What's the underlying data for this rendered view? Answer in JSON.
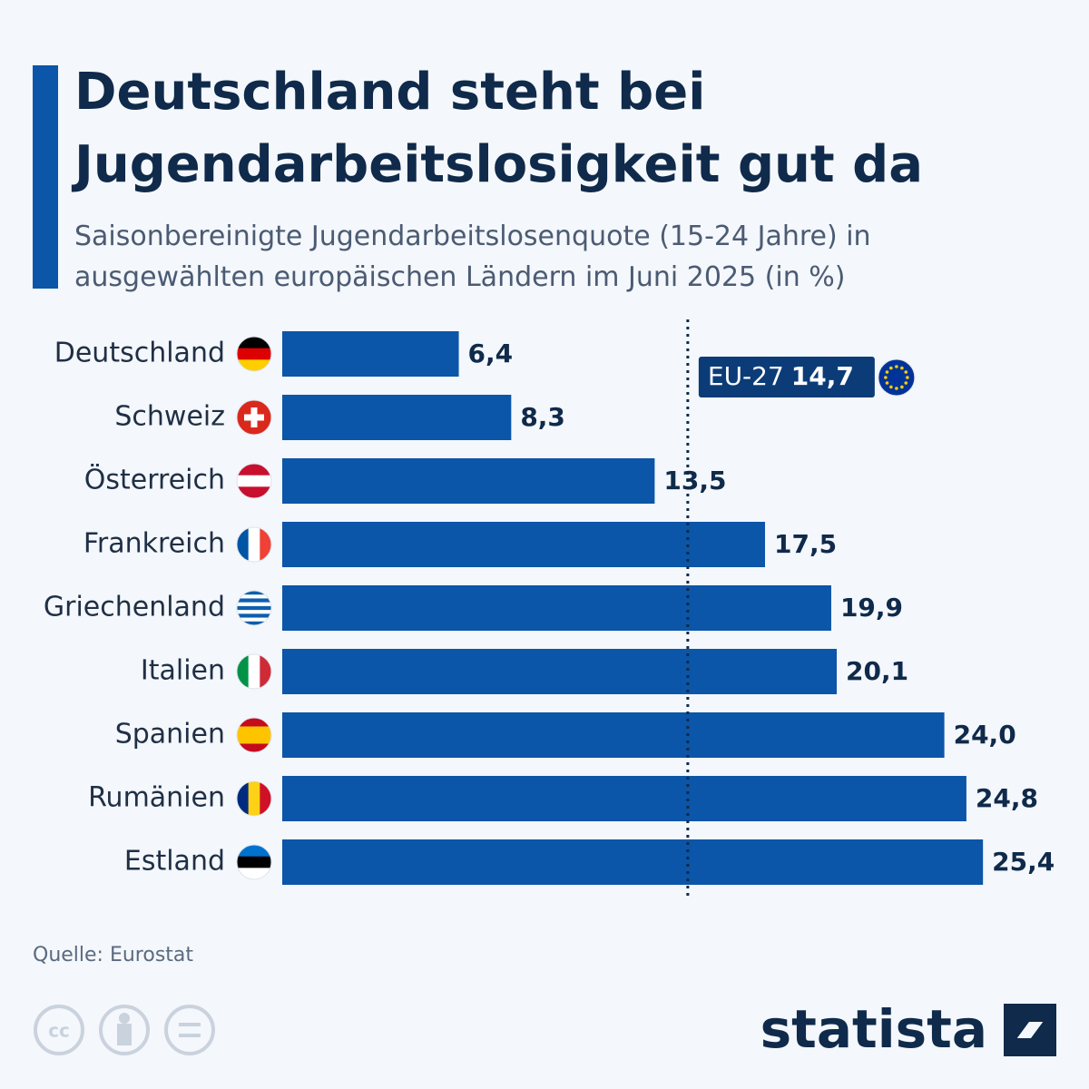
{
  "chart_data": {
    "type": "bar",
    "title": "Deutschland steht bei Jugendarbeitslosigkeit gut da",
    "subtitle": "Saisonbereinigte Jugendarbeitslosenquote (15-24 Jahre) in ausgewählten europäischen Ländern im Juni 2025 (in %)",
    "categories": [
      "Deutschland",
      "Schweiz",
      "Österreich",
      "Frankreich",
      "Griechenland",
      "Italien",
      "Spanien",
      "Rumänien",
      "Estland"
    ],
    "values": [
      6.4,
      8.3,
      13.5,
      17.5,
      19.9,
      20.1,
      24.0,
      24.8,
      25.4
    ],
    "value_labels": [
      "6,4",
      "8,3",
      "13,5",
      "17,5",
      "19,9",
      "20,1",
      "24,0",
      "24,8",
      "25,4"
    ],
    "color": "#0b56a8",
    "reference": {
      "name": "EU-27",
      "value": 14.7,
      "value_label": "14,7"
    },
    "source": "Quelle: Eurostat",
    "brand": "statista"
  }
}
